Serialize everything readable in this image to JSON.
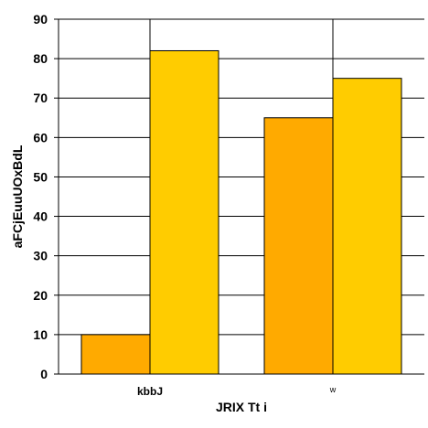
{
  "chart_data": {
    "type": "bar",
    "title": "",
    "xlabel": "JRIX Tt i",
    "ylabel": "aFCjEuuUOxBdL",
    "categories": [
      "kbbJ",
      "w"
    ],
    "series": [
      {
        "values": [
          10,
          65
        ],
        "color": "#FFAA00"
      },
      {
        "values": [
          82,
          75
        ],
        "color": "#FFCC00"
      }
    ],
    "ylim": [
      0,
      90
    ],
    "yticks": [
      0,
      10,
      20,
      30,
      40,
      50,
      60,
      70,
      80,
      90
    ],
    "grid": true,
    "legend": "none"
  }
}
